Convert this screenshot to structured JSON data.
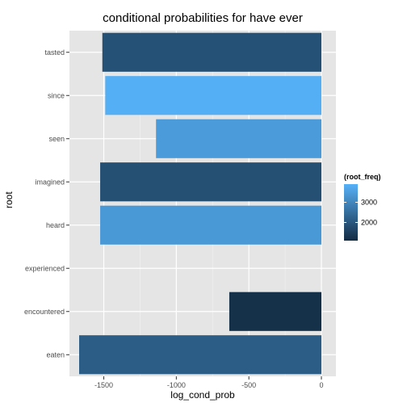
{
  "chart_data": {
    "type": "bar",
    "orientation": "horizontal",
    "title": "conditional probabilities for  have ever",
    "xlabel": "log_cond_prob",
    "ylabel": "root",
    "categories": [
      "tasted",
      "since",
      "seen",
      "imagined",
      "heard",
      "experienced",
      "encountered",
      "eaten"
    ],
    "values": [
      -1510,
      -1490,
      -1140,
      -1525,
      -1525,
      null,
      -635,
      -1670
    ],
    "root_freq": [
      1900,
      3850,
      3450,
      1850,
      3400,
      null,
      1200,
      2150
    ],
    "xlim": [
      -1670,
      0
    ],
    "xticks": [
      -1500,
      -1000,
      -500,
      0
    ],
    "xtick_labels": [
      "-1500",
      "-1000",
      "-500",
      "0"
    ],
    "grid": true,
    "legend": {
      "title": "(root_freq)",
      "position": "right",
      "range": [
        1100,
        3900
      ],
      "ticks": [
        2000,
        3000
      ],
      "tick_labels": [
        "2000",
        "3000"
      ],
      "color_low": "#132B43",
      "color_high": "#56B1F7"
    },
    "colors": {
      "panel": "#e5e5e5",
      "grid_major": "#ffffff",
      "grid_minor": "#f2f2f2"
    }
  }
}
